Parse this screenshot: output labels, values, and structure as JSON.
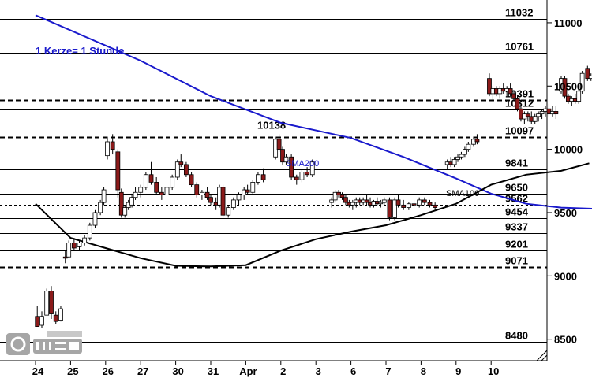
{
  "chart_data": {
    "type": "candlestick",
    "annotation": "1 Kerze= 1 Stunde",
    "ylim": [
      8330,
      11180
    ],
    "y_ticks": [
      8500,
      9000,
      9500,
      10000,
      10500,
      11000
    ],
    "x_ticks": [
      "24",
      "25",
      "26",
      "27",
      "30",
      "31",
      "Apr",
      "2",
      "3",
      "6",
      "7",
      "8",
      "9",
      "10"
    ],
    "levels": [
      {
        "value": 11032,
        "label": "11032",
        "style": "solid"
      },
      {
        "value": 10761,
        "label": "10761",
        "style": "solid"
      },
      {
        "value": 10391,
        "label": "10391",
        "style": "dashed"
      },
      {
        "value": 10312,
        "label": "10312",
        "style": "solid"
      },
      {
        "value": 10138,
        "label": "10138",
        "style": "solid"
      },
      {
        "value": 10097,
        "label": "10097",
        "style": "dashed"
      },
      {
        "value": 9841,
        "label": "9841",
        "style": "solid"
      },
      {
        "value": 9650,
        "label": "9650",
        "style": "solid"
      },
      {
        "value": 9562,
        "label": "9562",
        "style": "dotted"
      },
      {
        "value": 9454,
        "label": "9454",
        "style": "solid"
      },
      {
        "value": 9337,
        "label": "9337",
        "style": "solid"
      },
      {
        "value": 9201,
        "label": "9201",
        "style": "solid"
      },
      {
        "value": 9071,
        "label": "9071",
        "style": "dashed"
      },
      {
        "value": 8480,
        "label": "8480",
        "style": "solid"
      }
    ],
    "series": [
      {
        "name": "SMA200",
        "color": "#1a1acc",
        "points": [
          [
            0.0,
            11060
          ],
          [
            3.0,
            10700
          ],
          [
            5.0,
            10420
          ],
          [
            7.0,
            10210
          ],
          [
            9.0,
            10090
          ],
          [
            10.5,
            9940
          ],
          [
            12.0,
            9770
          ],
          [
            13.0,
            9650
          ],
          [
            14.0,
            9570
          ],
          [
            15.0,
            9540
          ],
          [
            16.0,
            9530
          ]
        ]
      },
      {
        "name": "SMA100",
        "color": "#000000",
        "points": [
          [
            0.0,
            9570
          ],
          [
            1.0,
            9300
          ],
          [
            2.0,
            9220
          ],
          [
            3.0,
            9140
          ],
          [
            4.0,
            9080
          ],
          [
            5.0,
            9075
          ],
          [
            6.0,
            9085
          ],
          [
            7.0,
            9200
          ],
          [
            8.0,
            9290
          ],
          [
            9.0,
            9350
          ],
          [
            10.0,
            9400
          ],
          [
            11.0,
            9480
          ],
          [
            12.0,
            9570
          ],
          [
            13.0,
            9720
          ],
          [
            14.0,
            9800
          ],
          [
            15.0,
            9830
          ],
          [
            15.8,
            9890
          ]
        ]
      }
    ],
    "candles": [
      [
        0.05,
        8680,
        8760,
        8620,
        8600
      ],
      [
        0.18,
        8610,
        8720,
        8590,
        8680
      ],
      [
        0.32,
        8690,
        8900,
        8690,
        8880
      ],
      [
        0.45,
        8880,
        8920,
        8660,
        8700
      ],
      [
        0.58,
        8690,
        8720,
        8620,
        8640
      ],
      [
        0.72,
        8650,
        8760,
        8640,
        8740
      ],
      [
        0.85,
        9150,
        9200,
        9100,
        9140
      ],
      [
        0.95,
        9150,
        9280,
        9140,
        9260
      ],
      [
        1.1,
        9260,
        9300,
        9200,
        9220
      ],
      [
        1.25,
        9230,
        9280,
        9200,
        9260
      ],
      [
        1.4,
        9260,
        9320,
        9240,
        9300
      ],
      [
        1.55,
        9300,
        9420,
        9280,
        9400
      ],
      [
        1.7,
        9400,
        9520,
        9380,
        9500
      ],
      [
        1.85,
        9500,
        9600,
        9480,
        9580
      ],
      [
        1.95,
        9580,
        9700,
        9560,
        9680
      ],
      [
        2.05,
        9950,
        10100,
        9920,
        10060
      ],
      [
        2.2,
        10060,
        10120,
        9960,
        10000
      ],
      [
        2.35,
        9980,
        10000,
        9620,
        9680
      ],
      [
        2.45,
        9660,
        9690,
        9460,
        9480
      ],
      [
        2.55,
        9480,
        9560,
        9460,
        9540
      ],
      [
        2.65,
        9540,
        9600,
        9520,
        9580
      ],
      [
        2.75,
        9560,
        9650,
        9540,
        9620
      ],
      [
        2.85,
        9620,
        9700,
        9600,
        9660
      ],
      [
        3.0,
        9660,
        9720,
        9620,
        9700
      ],
      [
        3.15,
        9700,
        9820,
        9680,
        9800
      ],
      [
        3.3,
        9800,
        9900,
        9720,
        9740
      ],
      [
        3.45,
        9740,
        9780,
        9640,
        9660
      ],
      [
        3.6,
        9660,
        9700,
        9600,
        9640
      ],
      [
        3.75,
        9640,
        9720,
        9620,
        9700
      ],
      [
        3.9,
        9700,
        9800,
        9680,
        9780
      ],
      [
        4.05,
        9780,
        9920,
        9760,
        9900
      ],
      [
        4.15,
        9900,
        9960,
        9860,
        9880
      ],
      [
        4.3,
        9880,
        9900,
        9780,
        9800
      ],
      [
        4.45,
        9800,
        9820,
        9700,
        9720
      ],
      [
        4.6,
        9720,
        9740,
        9620,
        9640
      ],
      [
        4.75,
        9640,
        9680,
        9600,
        9660
      ],
      [
        4.9,
        9660,
        9700,
        9600,
        9620
      ],
      [
        5.0,
        9620,
        9640,
        9560,
        9580
      ],
      [
        5.15,
        9580,
        9620,
        9520,
        9560
      ],
      [
        5.25,
        9560,
        9720,
        9540,
        9700
      ],
      [
        5.35,
        9700,
        9720,
        9460,
        9480
      ],
      [
        5.5,
        9480,
        9560,
        9460,
        9540
      ],
      [
        5.65,
        9540,
        9620,
        9520,
        9600
      ],
      [
        5.8,
        9600,
        9660,
        9560,
        9640
      ],
      [
        5.95,
        9640,
        9700,
        9600,
        9680
      ],
      [
        6.05,
        9680,
        9720,
        9640,
        9660
      ],
      [
        6.2,
        9660,
        9760,
        9640,
        9740
      ],
      [
        6.35,
        9740,
        9820,
        9720,
        9800
      ],
      [
        6.5,
        9800,
        9850,
        9740,
        9760
      ],
      [
        6.85,
        9940,
        10100,
        9920,
        10080
      ],
      [
        6.95,
        10080,
        10120,
        9980,
        10000
      ],
      [
        7.05,
        10000,
        10020,
        9880,
        9900
      ],
      [
        7.15,
        9900,
        9960,
        9880,
        9940
      ],
      [
        7.3,
        9940,
        9960,
        9760,
        9780
      ],
      [
        7.45,
        9780,
        9800,
        9720,
        9760
      ],
      [
        7.6,
        9760,
        9840,
        9740,
        9820
      ],
      [
        7.75,
        9820,
        9860,
        9780,
        9800
      ],
      [
        7.9,
        9800,
        9920,
        9780,
        9900
      ],
      [
        8.45,
        9580,
        9620,
        9540,
        9600
      ],
      [
        8.55,
        9600,
        9680,
        9580,
        9660
      ],
      [
        8.65,
        9660,
        9680,
        9620,
        9640
      ],
      [
        8.75,
        9640,
        9660,
        9600,
        9620
      ],
      [
        8.85,
        9620,
        9640,
        9560,
        9580
      ],
      [
        8.95,
        9580,
        9600,
        9540,
        9560
      ],
      [
        9.05,
        9560,
        9600,
        9520,
        9580
      ],
      [
        9.15,
        9580,
        9620,
        9540,
        9600
      ],
      [
        9.25,
        9600,
        9620,
        9560,
        9580
      ],
      [
        9.35,
        9580,
        9620,
        9560,
        9600
      ],
      [
        9.45,
        9600,
        9640,
        9560,
        9580
      ],
      [
        9.55,
        9580,
        9620,
        9540,
        9560
      ],
      [
        9.65,
        9560,
        9600,
        9540,
        9590
      ],
      [
        9.75,
        9590,
        9620,
        9560,
        9570
      ],
      [
        9.85,
        9570,
        9600,
        9540,
        9580
      ],
      [
        9.95,
        9580,
        9620,
        9560,
        9600
      ],
      [
        10.1,
        9600,
        9620,
        9440,
        9460
      ],
      [
        10.25,
        9460,
        9620,
        9440,
        9600
      ],
      [
        10.35,
        9600,
        9640,
        9540,
        9560
      ],
      [
        10.5,
        9560,
        9600,
        9520,
        9540
      ],
      [
        10.65,
        9540,
        9580,
        9520,
        9570
      ],
      [
        10.8,
        9570,
        9600,
        9540,
        9560
      ],
      [
        10.95,
        9560,
        9620,
        9540,
        9600
      ],
      [
        11.1,
        9600,
        9620,
        9560,
        9580
      ],
      [
        11.25,
        9580,
        9600,
        9540,
        9560
      ],
      [
        11.4,
        9560,
        9580,
        9520,
        9540
      ],
      [
        11.75,
        9880,
        9920,
        9840,
        9900
      ],
      [
        11.85,
        9900,
        9940,
        9860,
        9880
      ],
      [
        11.95,
        9880,
        9940,
        9860,
        9920
      ],
      [
        12.05,
        9920,
        9960,
        9900,
        9940
      ],
      [
        12.15,
        9940,
        9980,
        9920,
        9960
      ],
      [
        12.25,
        9960,
        10020,
        9940,
        10000
      ],
      [
        12.35,
        10000,
        10060,
        9980,
        10040
      ],
      [
        12.5,
        10040,
        10100,
        10020,
        10080
      ],
      [
        12.6,
        10080,
        10120,
        10040,
        10060
      ],
      [
        12.95,
        10560,
        10600,
        10420,
        10440
      ],
      [
        13.05,
        10440,
        10500,
        10380,
        10480
      ],
      [
        13.15,
        10480,
        10500,
        10420,
        10440
      ],
      [
        13.25,
        10440,
        10500,
        10400,
        10480
      ],
      [
        13.35,
        10480,
        10520,
        10440,
        10460
      ],
      [
        13.45,
        10460,
        10500,
        10420,
        10480
      ],
      [
        13.55,
        10480,
        10520,
        10420,
        10440
      ],
      [
        13.65,
        10440,
        10460,
        10380,
        10400
      ],
      [
        13.75,
        10400,
        10420,
        10300,
        10320
      ],
      [
        13.85,
        10320,
        10340,
        10220,
        10240
      ],
      [
        13.95,
        10240,
        10300,
        10200,
        10280
      ],
      [
        14.05,
        10280,
        10300,
        10220,
        10260
      ],
      [
        14.15,
        10260,
        10300,
        10200,
        10220
      ],
      [
        14.25,
        10220,
        10280,
        10200,
        10260
      ],
      [
        14.35,
        10260,
        10300,
        10220,
        10280
      ],
      [
        14.45,
        10280,
        10320,
        10240,
        10300
      ],
      [
        14.55,
        10300,
        10340,
        10260,
        10320
      ],
      [
        14.65,
        10320,
        10360,
        10260,
        10280
      ],
      [
        14.75,
        10280,
        10340,
        10260,
        10300
      ],
      [
        14.85,
        10300,
        10340,
        10240,
        10280
      ],
      [
        15.0,
        10460,
        10580,
        10440,
        10560
      ],
      [
        15.1,
        10560,
        10580,
        10400,
        10420
      ],
      [
        15.2,
        10420,
        10440,
        10360,
        10380
      ],
      [
        15.3,
        10380,
        10420,
        10340,
        10400
      ],
      [
        15.4,
        10400,
        10440,
        10360,
        10380
      ],
      [
        15.5,
        10380,
        10480,
        10360,
        10460
      ],
      [
        15.6,
        10460,
        10620,
        10440,
        10600
      ],
      [
        15.75,
        10640,
        10660,
        10540,
        10560
      ],
      [
        15.85,
        10560,
        10600,
        10540,
        10580
      ]
    ]
  }
}
